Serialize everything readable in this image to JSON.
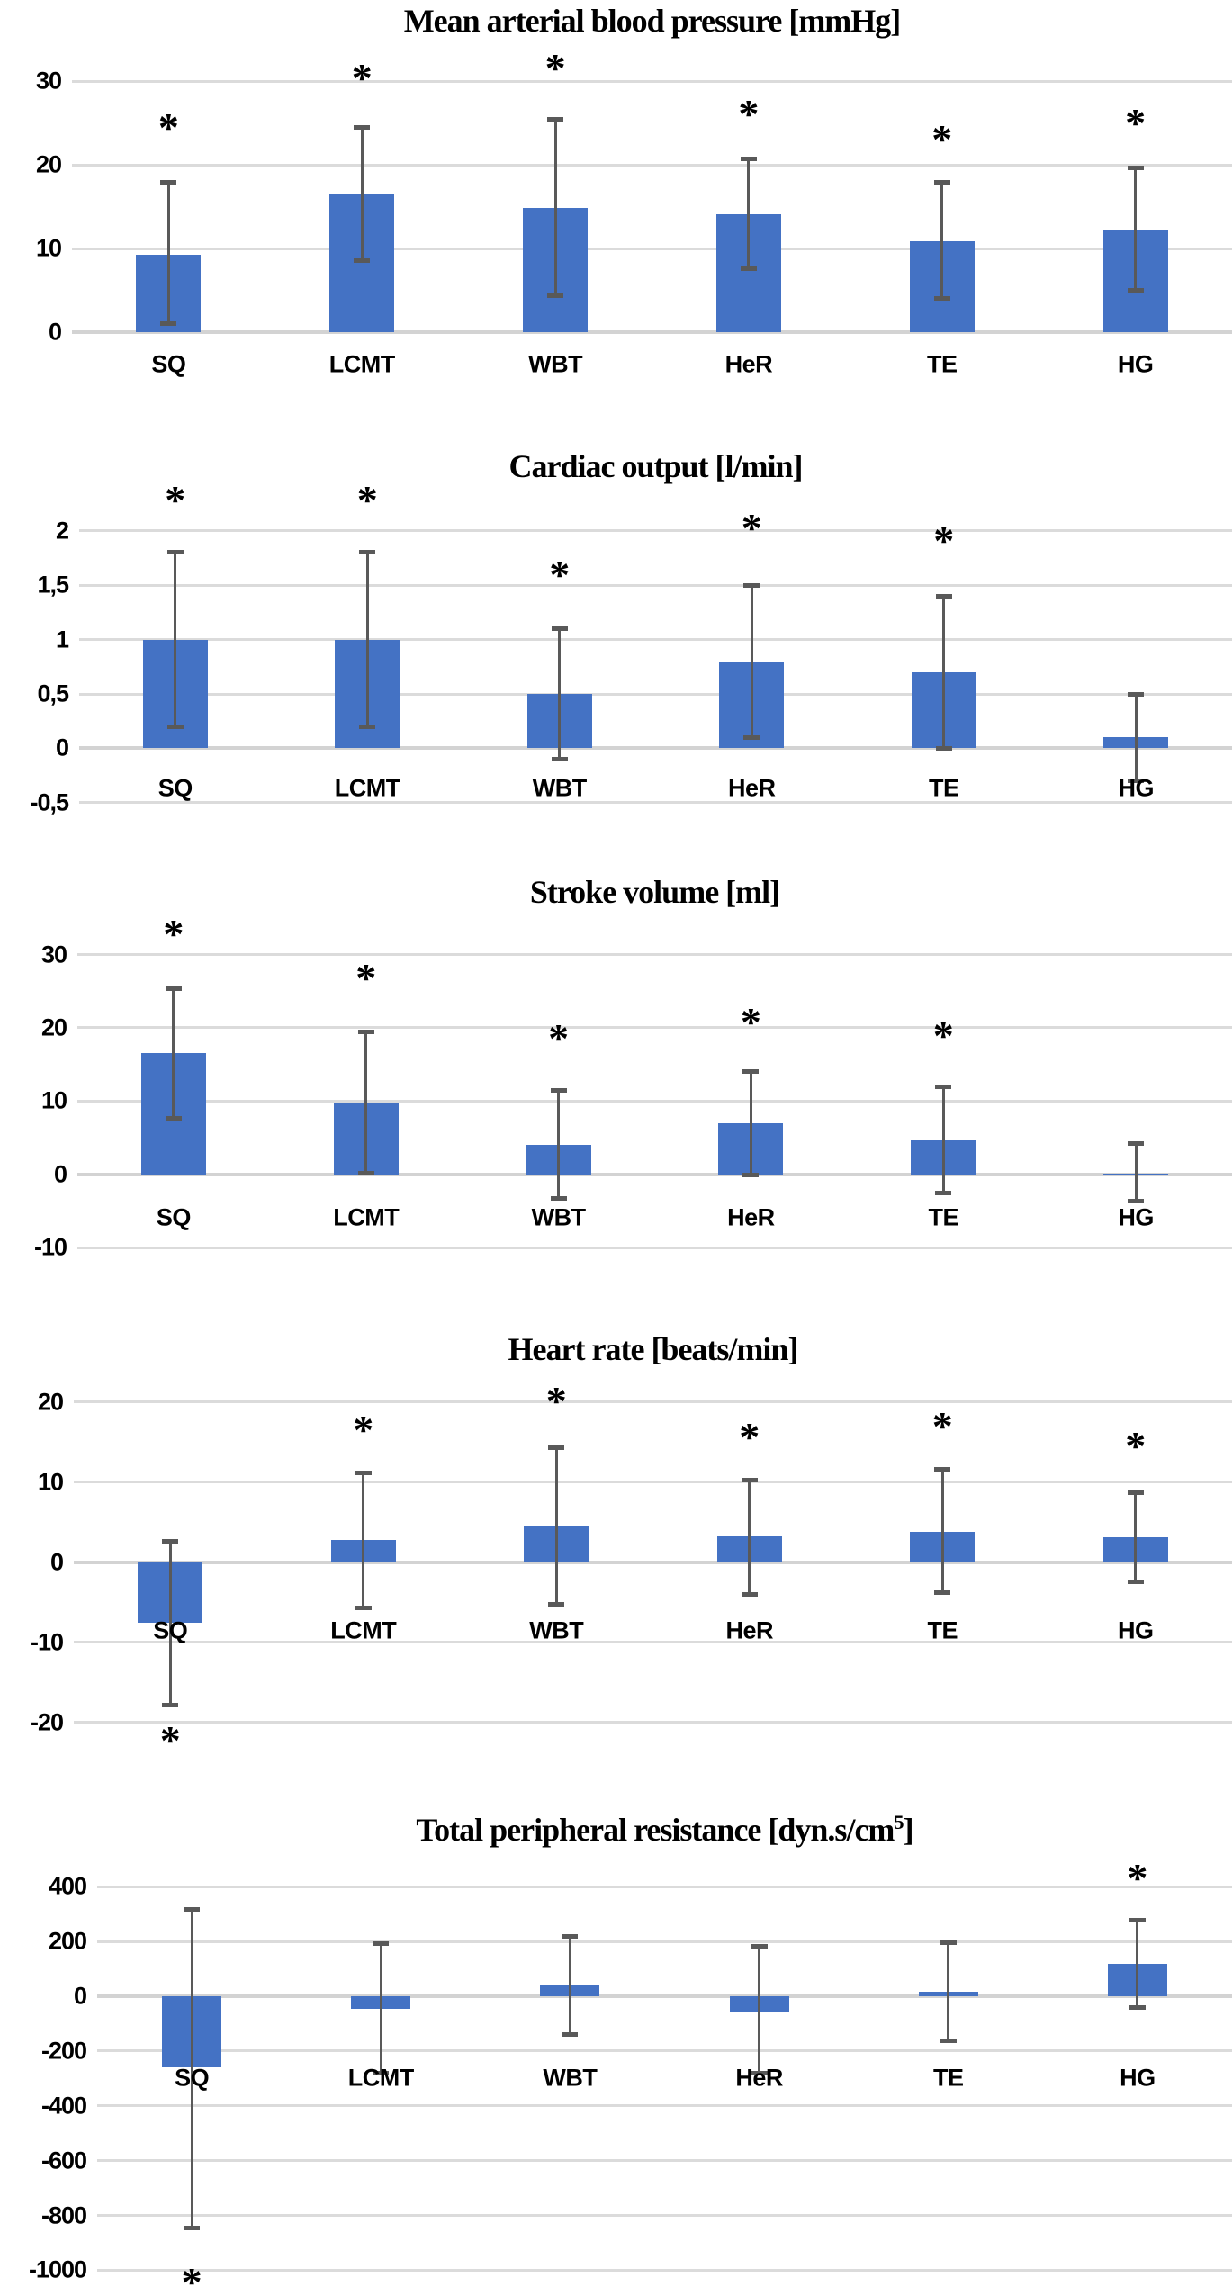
{
  "style": {
    "bar_color": "#4472C4",
    "error_color": "#595959",
    "grid_color": "#DBDBDB",
    "axis_color": "#D3D3D3",
    "star_color": "#000000",
    "star_glyph": "*"
  },
  "chart_data": [
    {
      "type": "bar",
      "title": {
        "pre": "Mean arterial blood pressure [mmHg]",
        "sup": "",
        "post": ""
      },
      "categories": [
        "SQ",
        "LCMT",
        "WBT",
        "HeR",
        "TE",
        "HG"
      ],
      "ylim": [
        -6.2,
        33.8
      ],
      "grid": true,
      "ticks": [
        {
          "label": "30",
          "value": 30
        },
        {
          "label": "20",
          "value": 20
        },
        {
          "label": "10",
          "value": 10
        },
        {
          "label": "0",
          "value": 0
        }
      ],
      "points": [
        {
          "category": "SQ",
          "value": 9.3,
          "err_lo": 1.1,
          "err_hi": 17.9,
          "star": true,
          "star_value": 25.4
        },
        {
          "category": "LCMT",
          "value": 16.6,
          "err_lo": 8.6,
          "err_hi": 24.5,
          "star": true,
          "star_value": 31.3
        },
        {
          "category": "WBT",
          "value": 14.9,
          "err_lo": 4.4,
          "err_hi": 25.5,
          "star": true,
          "star_value": 32.5
        },
        {
          "category": "HeR",
          "value": 14.1,
          "err_lo": 7.6,
          "err_hi": 20.7,
          "star": true,
          "star_value": 27.0
        },
        {
          "category": "TE",
          "value": 10.9,
          "err_lo": 4.1,
          "err_hi": 17.9,
          "star": true,
          "star_value": 24.0
        },
        {
          "category": "HG",
          "value": 12.3,
          "err_lo": 5.0,
          "err_hi": 19.7,
          "star": true,
          "star_value": 26.0
        }
      ]
    },
    {
      "type": "bar",
      "title": {
        "pre": "Cardiac output [l/min]",
        "sup": "",
        "post": ""
      },
      "categories": [
        "SQ",
        "LCMT",
        "WBT",
        "HeR",
        "TE",
        "HG"
      ],
      "ylim": [
        -0.6,
        2.37
      ],
      "grid": true,
      "ticks": [
        {
          "label": "2",
          "value": 2
        },
        {
          "label": "1,5",
          "value": 1.5
        },
        {
          "label": "1",
          "value": 1
        },
        {
          "label": "0,5",
          "value": 0.5
        },
        {
          "label": "0",
          "value": 0
        },
        {
          "label": "-0,5",
          "value": -0.5
        }
      ],
      "points": [
        {
          "category": "SQ",
          "value": 1.0,
          "err_lo": 0.2,
          "err_hi": 1.8,
          "star": true,
          "star_value": 2.35
        },
        {
          "category": "LCMT",
          "value": 1.0,
          "err_lo": 0.2,
          "err_hi": 1.8,
          "star": true,
          "star_value": 2.35
        },
        {
          "category": "WBT",
          "value": 0.5,
          "err_lo": -0.1,
          "err_hi": 1.1,
          "star": true,
          "star_value": 1.67
        },
        {
          "category": "HeR",
          "value": 0.8,
          "err_lo": 0.1,
          "err_hi": 1.5,
          "star": true,
          "star_value": 2.1
        },
        {
          "category": "TE",
          "value": 0.7,
          "err_lo": 0.0,
          "err_hi": 1.4,
          "star": true,
          "star_value": 1.98
        },
        {
          "category": "HG",
          "value": 0.1,
          "err_lo": -0.3,
          "err_hi": 0.5,
          "star": false,
          "star_value": 0
        }
      ]
    },
    {
      "type": "bar",
      "title": {
        "pre": "Stroke volume [ml]",
        "sup": "",
        "post": ""
      },
      "categories": [
        "SQ",
        "LCMT",
        "WBT",
        "HeR",
        "TE",
        "HG"
      ],
      "ylim": [
        -11.7,
        35.6
      ],
      "grid": true,
      "ticks": [
        {
          "label": "30",
          "value": 30
        },
        {
          "label": "20",
          "value": 20
        },
        {
          "label": "10",
          "value": 10
        },
        {
          "label": "0",
          "value": 0
        },
        {
          "label": "-10",
          "value": -10
        }
      ],
      "points": [
        {
          "category": "SQ",
          "value": 16.5,
          "err_lo": 7.6,
          "err_hi": 25.4,
          "star": true,
          "star_value": 33.9
        },
        {
          "category": "LCMT",
          "value": 9.7,
          "err_lo": 0.1,
          "err_hi": 19.5,
          "star": true,
          "star_value": 27.8
        },
        {
          "category": "WBT",
          "value": 4.0,
          "err_lo": -3.3,
          "err_hi": 11.4,
          "star": true,
          "star_value": 19.6
        },
        {
          "category": "HeR",
          "value": 7.0,
          "err_lo": -0.1,
          "err_hi": 14.0,
          "star": true,
          "star_value": 21.8
        },
        {
          "category": "TE",
          "value": 4.7,
          "err_lo": -2.6,
          "err_hi": 12.0,
          "star": true,
          "star_value": 20.0
        },
        {
          "category": "HG",
          "value": 0.15,
          "err_lo": -3.6,
          "err_hi": 4.2,
          "star": false,
          "star_value": 0
        }
      ]
    },
    {
      "type": "bar",
      "title": {
        "pre": "Heart rate [beats/min]",
        "sup": "",
        "post": ""
      },
      "categories": [
        "SQ",
        "LCMT",
        "WBT",
        "HeR",
        "TE",
        "HG"
      ],
      "ylim": [
        -22.4,
        24.8
      ],
      "grid": true,
      "ticks": [
        {
          "label": "20",
          "value": 20
        },
        {
          "label": "10",
          "value": 10
        },
        {
          "label": "0",
          "value": 0
        },
        {
          "label": "-10",
          "value": -10
        },
        {
          "label": "-20",
          "value": -20
        }
      ],
      "points": [
        {
          "category": "SQ",
          "value": -7.6,
          "err_lo": -17.8,
          "err_hi": 2.6,
          "star": true,
          "star_value": -21.3
        },
        {
          "category": "LCMT",
          "value": 2.8,
          "err_lo": -5.7,
          "err_hi": 11.2,
          "star": true,
          "star_value": 17.5
        },
        {
          "category": "WBT",
          "value": 4.5,
          "err_lo": -5.3,
          "err_hi": 14.3,
          "star": true,
          "star_value": 21.1
        },
        {
          "category": "HeR",
          "value": 3.2,
          "err_lo": -4.0,
          "err_hi": 10.2,
          "star": true,
          "star_value": 16.6
        },
        {
          "category": "TE",
          "value": 3.8,
          "err_lo": -3.8,
          "err_hi": 11.6,
          "star": true,
          "star_value": 17.9
        },
        {
          "category": "HG",
          "value": 3.1,
          "err_lo": -2.4,
          "err_hi": 8.7,
          "star": true,
          "star_value": 15.5
        }
      ]
    },
    {
      "type": "bar",
      "title": {
        "pre": "Total peripheral resistance [dyn.s/cm",
        "sup": "5",
        "post": "]"
      },
      "categories": [
        "SQ",
        "LCMT",
        "WBT",
        "HeR",
        "TE",
        "HG"
      ],
      "ylim": [
        -1061,
        535
      ],
      "grid": true,
      "ticks": [
        {
          "label": "400",
          "value": 400
        },
        {
          "label": "200",
          "value": 200
        },
        {
          "label": "0",
          "value": 0
        },
        {
          "label": "-200",
          "value": -200
        },
        {
          "label": "-400",
          "value": -400
        },
        {
          "label": "-600",
          "value": -600
        },
        {
          "label": "-800",
          "value": -800
        },
        {
          "label": "-1000",
          "value": -1000
        }
      ],
      "points": [
        {
          "category": "SQ",
          "value": -260,
          "err_lo": -845,
          "err_hi": 315,
          "star": true,
          "star_value": -1015
        },
        {
          "category": "LCMT",
          "value": -45,
          "err_lo": -280,
          "err_hi": 192,
          "star": false,
          "star_value": 0
        },
        {
          "category": "WBT",
          "value": 38,
          "err_lo": -140,
          "err_hi": 218,
          "star": false,
          "star_value": 0
        },
        {
          "category": "HeR",
          "value": -55,
          "err_lo": -282,
          "err_hi": 182,
          "star": false,
          "star_value": 0
        },
        {
          "category": "TE",
          "value": 15,
          "err_lo": -162,
          "err_hi": 194,
          "star": false,
          "star_value": 0
        },
        {
          "category": "HG",
          "value": 118,
          "err_lo": -42,
          "err_hi": 278,
          "star": true,
          "star_value": 460
        }
      ]
    }
  ]
}
